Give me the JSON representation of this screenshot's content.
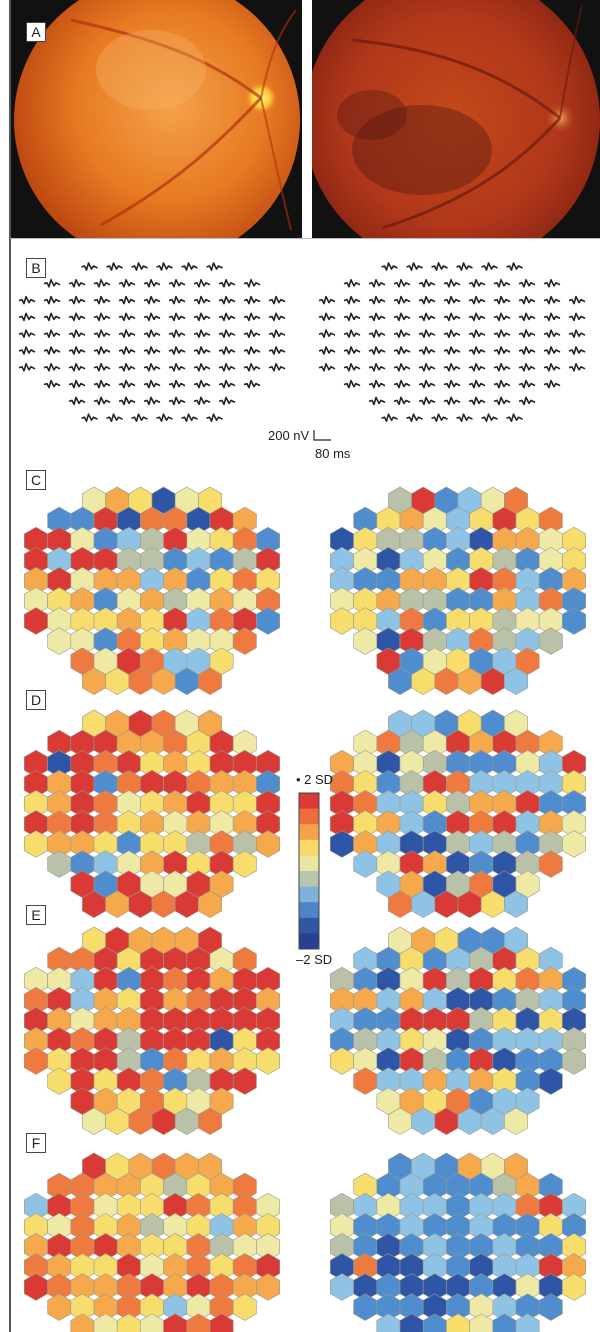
{
  "panels": {
    "A": {
      "label": "A"
    },
    "B": {
      "label": "B"
    },
    "C": {
      "label": "C"
    },
    "D": {
      "label": "D"
    },
    "E": {
      "label": "E"
    },
    "F": {
      "label": "F"
    }
  },
  "mferg_scale": {
    "amplitude": "200 nV",
    "time": "80 ms"
  },
  "colorbar": {
    "top_label": "• 2 SD",
    "bottom_label": "–2 SD",
    "colors": [
      "#d93a35",
      "#ee6b3c",
      "#f5a24c",
      "#f8d868",
      "#e8e6a0",
      "#b8c6b0",
      "#7fb0d8",
      "#4d86c8",
      "#3156a6",
      "#2a3f8f"
    ]
  },
  "fundus": {
    "left": {
      "image": "fundus-photograph-left"
    },
    "right": {
      "image": "fundus-photograph-right"
    }
  },
  "hexmap_palette": {
    "red": "#d93a35",
    "orange": "#ef7a3f",
    "light_orange": "#f6a84c",
    "yellow": "#f7dd6b",
    "pale_yellow": "#efe9a6",
    "grey_green": "#b9c2a8",
    "light_blue": "#8fc3e6",
    "mid_blue": "#4f8dcf",
    "dark_blue": "#2f55a7"
  }
}
